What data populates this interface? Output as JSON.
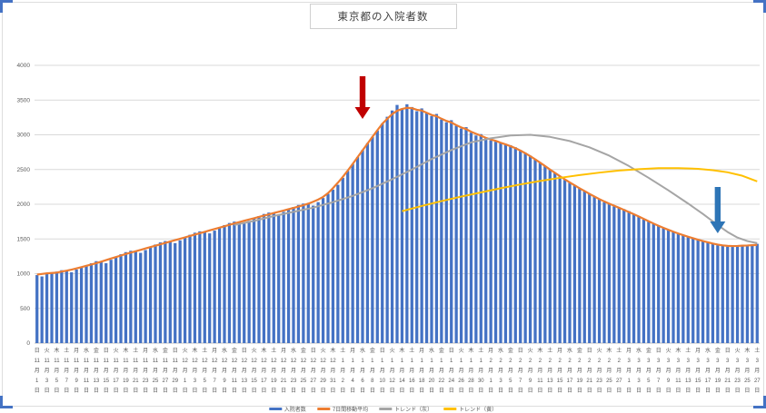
{
  "title": "東京都の入院者数",
  "colors": {
    "bar": "#4472C4",
    "orange": "#ED7D31",
    "gray": "#A5A5A5",
    "yellow": "#FFC000",
    "grid": "#D9D9D9",
    "axis_line": "#BFBFBF",
    "tick_text": "#595959",
    "red_arrow": "#C00000",
    "blue_arrow": "#2E75B6",
    "selection": "#4472C4"
  },
  "y_axis": {
    "min": 0,
    "max": 4000,
    "step": 500,
    "tick_labels": [
      "0",
      "500",
      "1000",
      "1500",
      "2000",
      "2500",
      "3000",
      "3500",
      "4000"
    ]
  },
  "x_axis": {
    "label_every_days": 2,
    "weekdays": [
      "日",
      "月",
      "火",
      "水",
      "木",
      "金",
      "土"
    ],
    "start_weekday_index": 0,
    "month_suffix": "月",
    "day_suffix": "日",
    "months": [
      {
        "month": 11,
        "num_days": 30
      },
      {
        "month": 12,
        "num_days": 31
      },
      {
        "month": 1,
        "num_days": 31
      },
      {
        "month": 2,
        "num_days": 28
      },
      {
        "month": 3,
        "num_days": 27
      }
    ]
  },
  "legend": {
    "items": [
      {
        "label": "入院者数",
        "color": "#4472C4",
        "marker": "bar"
      },
      {
        "label": "7日間移動平均",
        "color": "#ED7D31",
        "marker": "line"
      },
      {
        "label": "トレンド（灰）",
        "color": "#A5A5A5",
        "marker": "line"
      },
      {
        "label": "トレンド（黄）",
        "color": "#FFC000",
        "marker": "line"
      }
    ]
  },
  "annotations": {
    "red_arrow": {
      "day_index": 66,
      "near_label": "1月6日",
      "color": "#C00000"
    },
    "blue_arrow": {
      "day_index": 138,
      "near_label": "3月19日",
      "color": "#2E75B6"
    }
  },
  "chart_data": {
    "type": "bar",
    "title": "東京都の入院者数",
    "xlabel": "",
    "ylabel": "",
    "ylim": [
      0,
      4000
    ],
    "x_start": "11月1日",
    "x_end": "3月27日",
    "x_unit": "day",
    "grid": true,
    "legend_position": "bottom (clipped)",
    "bars": {
      "name": "入院者数",
      "color": "#4472C4",
      "values": [
        980,
        960,
        1000,
        1010,
        1030,
        1050,
        1040,
        1020,
        1060,
        1090,
        1120,
        1150,
        1180,
        1170,
        1150,
        1200,
        1240,
        1280,
        1310,
        1330,
        1320,
        1300,
        1340,
        1380,
        1420,
        1450,
        1470,
        1460,
        1440,
        1480,
        1520,
        1560,
        1590,
        1610,
        1600,
        1580,
        1620,
        1660,
        1700,
        1730,
        1750,
        1740,
        1720,
        1760,
        1800,
        1830,
        1860,
        1880,
        1870,
        1850,
        1890,
        1930,
        1960,
        1990,
        2010,
        2000,
        1980,
        2030,
        2090,
        2150,
        2210,
        2280,
        2380,
        2480,
        2580,
        2680,
        2780,
        2880,
        2970,
        3060,
        3160,
        3260,
        3350,
        3430,
        3380,
        3440,
        3400,
        3340,
        3380,
        3310,
        3270,
        3300,
        3220,
        3180,
        3210,
        3130,
        3090,
        3110,
        3030,
        2990,
        3010,
        2950,
        2920,
        2900,
        2890,
        2870,
        2850,
        2820,
        2780,
        2740,
        2700,
        2650,
        2600,
        2550,
        2500,
        2450,
        2400,
        2350,
        2310,
        2270,
        2230,
        2190,
        2150,
        2110,
        2070,
        2030,
        2000,
        1970,
        1950,
        1930,
        1900,
        1860,
        1820,
        1780,
        1750,
        1720,
        1690,
        1660,
        1630,
        1600,
        1570,
        1550,
        1530,
        1510,
        1490,
        1470,
        1450,
        1430,
        1410,
        1400,
        1390,
        1385,
        1390,
        1400,
        1410,
        1420,
        1430
      ]
    },
    "lines": [
      {
        "name": "7日間移動平均",
        "color": "#ED7D31",
        "derived": "centered_7day_moving_average_of_bars"
      },
      {
        "name": "トレンド（灰）",
        "color": "#A5A5A5",
        "points": [
          [
            40,
            1700
          ],
          [
            44,
            1760
          ],
          [
            48,
            1830
          ],
          [
            52,
            1890
          ],
          [
            56,
            1950
          ],
          [
            60,
            2030
          ],
          [
            64,
            2120
          ],
          [
            68,
            2230
          ],
          [
            72,
            2360
          ],
          [
            76,
            2500
          ],
          [
            80,
            2650
          ],
          [
            84,
            2780
          ],
          [
            88,
            2890
          ],
          [
            92,
            2950
          ],
          [
            96,
            2990
          ],
          [
            100,
            3000
          ],
          [
            104,
            2970
          ],
          [
            108,
            2910
          ],
          [
            112,
            2820
          ],
          [
            116,
            2700
          ],
          [
            120,
            2550
          ],
          [
            124,
            2380
          ],
          [
            128,
            2200
          ],
          [
            132,
            2010
          ],
          [
            135,
            1860
          ],
          [
            138,
            1700
          ],
          [
            140,
            1600
          ],
          [
            142,
            1520
          ],
          [
            144,
            1470
          ],
          [
            146,
            1440
          ]
        ]
      },
      {
        "name": "トレンド（黄）",
        "color": "#FFC000",
        "points": [
          [
            74,
            1900
          ],
          [
            78,
            1975
          ],
          [
            82,
            2045
          ],
          [
            86,
            2110
          ],
          [
            90,
            2170
          ],
          [
            94,
            2230
          ],
          [
            98,
            2285
          ],
          [
            102,
            2335
          ],
          [
            106,
            2380
          ],
          [
            110,
            2420
          ],
          [
            114,
            2455
          ],
          [
            118,
            2485
          ],
          [
            122,
            2505
          ],
          [
            126,
            2520
          ],
          [
            130,
            2520
          ],
          [
            134,
            2510
          ],
          [
            137,
            2490
          ],
          [
            140,
            2460
          ],
          [
            143,
            2410
          ],
          [
            146,
            2330
          ]
        ]
      }
    ]
  }
}
